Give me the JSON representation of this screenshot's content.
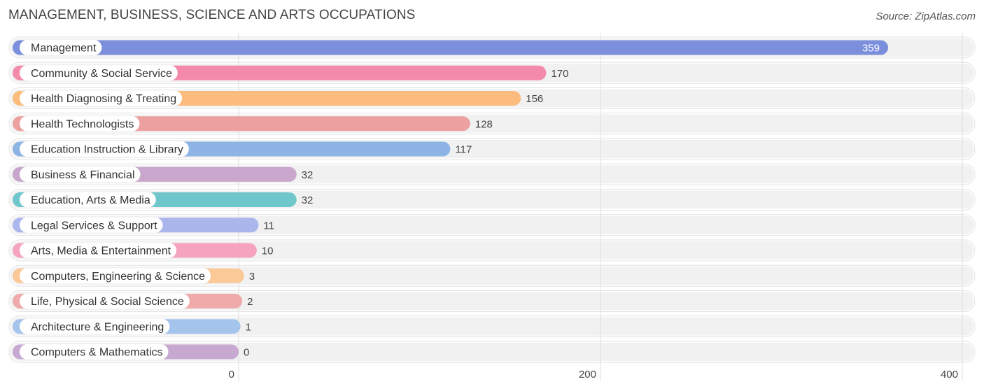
{
  "header": {
    "title": "MANAGEMENT, BUSINESS, SCIENCE AND ARTS OCCUPATIONS",
    "source": "Source: ZipAtlas.com"
  },
  "chart_data": {
    "type": "bar",
    "orientation": "horizontal",
    "title": "MANAGEMENT, BUSINESS, SCIENCE AND ARTS OCCUPATIONS",
    "xlabel": "",
    "ylabel": "",
    "xlim": [
      0,
      400
    ],
    "x_ticks": [
      0,
      200,
      400
    ],
    "x_tick_labels": [
      "0",
      "200",
      "400"
    ],
    "grid": true,
    "categories": [
      "Management",
      "Community & Social Service",
      "Health Diagnosing & Treating",
      "Health Technologists",
      "Education Instruction & Library",
      "Business & Financial",
      "Education, Arts & Media",
      "Legal Services & Support",
      "Arts, Media & Entertainment",
      "Computers, Engineering & Science",
      "Life, Physical & Social Science",
      "Architecture & Engineering",
      "Computers & Mathematics"
    ],
    "values": [
      359,
      170,
      156,
      128,
      117,
      32,
      32,
      11,
      10,
      3,
      2,
      1,
      0
    ],
    "value_labels": [
      "359",
      "170",
      "156",
      "128",
      "117",
      "32",
      "32",
      "11",
      "10",
      "3",
      "2",
      "1",
      "0"
    ],
    "colors": [
      "#7b8fdc",
      "#f48aaa",
      "#fbbc7e",
      "#eca0a0",
      "#8db4e4",
      "#c9a6cc",
      "#6fc6cb",
      "#aab6ec",
      "#f5a3bf",
      "#fbc898",
      "#efaaaa",
      "#a4c4ec",
      "#c6a8d0"
    ],
    "track_color": "#f1f1f1",
    "grid_color": "#dddddd"
  }
}
